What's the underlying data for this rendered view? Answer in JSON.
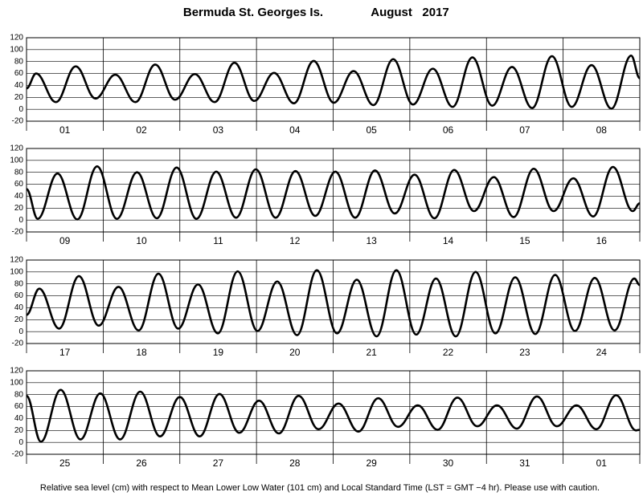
{
  "title": "Bermuda St. Georges Is.",
  "title_date": "August   2017",
  "note": "Relative sea level (cm) with respect to Mean Lower Low Water (101 cm) and Local Standard Time (LST = GMT −4 hr). Please use with caution.",
  "chart_data": [
    {
      "type": "line",
      "color": "#000000",
      "grid": true,
      "xlim": [
        0,
        192
      ],
      "xticks": [
        0,
        24,
        48,
        72,
        96,
        120,
        144,
        168,
        192
      ],
      "ylim": [
        -20,
        120
      ],
      "yticks": [
        -20,
        0,
        20,
        40,
        60,
        80,
        100,
        120
      ],
      "categories": [
        "01",
        "02",
        "03",
        "04",
        "05",
        "06",
        "07",
        "08"
      ],
      "x": [
        0,
        3,
        9.2,
        15.4,
        21.6,
        27.8,
        34.1,
        40.3,
        46.5,
        52.7,
        58.9,
        65.1,
        71.3,
        77.5,
        83.7,
        89.9,
        96.2,
        102.4,
        108.6,
        114.8,
        121,
        127.2,
        133.4,
        139.6,
        145.8,
        152,
        158.3,
        164.5,
        170.7,
        176.9,
        183.1,
        189.3,
        192
      ],
      "values": [
        35,
        60,
        12,
        72,
        18,
        58,
        12,
        75,
        16,
        59,
        12,
        78,
        14,
        61,
        10,
        81,
        11,
        64,
        7,
        84,
        8,
        68,
        4,
        87,
        6,
        71,
        2,
        89,
        4,
        74,
        1,
        90,
        52
      ]
    },
    {
      "type": "line",
      "color": "#000000",
      "grid": true,
      "xlim": [
        0,
        192
      ],
      "xticks": [
        0,
        24,
        48,
        72,
        96,
        120,
        144,
        168,
        192
      ],
      "ylim": [
        -20,
        120
      ],
      "yticks": [
        -20,
        0,
        20,
        40,
        60,
        80,
        100,
        120
      ],
      "categories": [
        "09",
        "10",
        "11",
        "12",
        "13",
        "14",
        "15",
        "16"
      ],
      "x": [
        0,
        3.5,
        9.7,
        15.9,
        22.1,
        28.3,
        34.6,
        40.8,
        47,
        53.2,
        59.4,
        65.6,
        71.8,
        78,
        84.2,
        90.4,
        96.7,
        102.9,
        109.1,
        115.3,
        121.5,
        127.7,
        133.9,
        140.1,
        146.3,
        152.5,
        158.8,
        165,
        171.2,
        177.4,
        183.6,
        189.8,
        192
      ],
      "values": [
        52,
        2,
        78,
        1,
        90,
        2,
        80,
        3,
        88,
        2,
        81,
        4,
        85,
        4,
        82,
        7,
        81,
        4,
        83,
        11,
        76,
        3,
        84,
        15,
        72,
        5,
        86,
        15,
        70,
        6,
        89,
        15,
        28
      ]
    },
    {
      "type": "line",
      "color": "#000000",
      "grid": true,
      "xlim": [
        0,
        192
      ],
      "xticks": [
        0,
        24,
        48,
        72,
        96,
        120,
        144,
        168,
        192
      ],
      "ylim": [
        -20,
        120
      ],
      "yticks": [
        -20,
        0,
        20,
        40,
        60,
        80,
        100,
        120
      ],
      "categories": [
        "17",
        "18",
        "19",
        "20",
        "21",
        "22",
        "23",
        "24"
      ],
      "x": [
        0,
        4,
        10.2,
        16.4,
        22.6,
        28.8,
        35.1,
        41.3,
        47.5,
        53.7,
        59.9,
        66.1,
        72.3,
        78.5,
        84.7,
        90.9,
        97.2,
        103.4,
        109.6,
        115.8,
        122,
        128.2,
        134.4,
        140.6,
        146.8,
        153,
        159.3,
        165.5,
        171.7,
        177.9,
        184.1,
        190.3,
        192
      ],
      "values": [
        28,
        72,
        5,
        93,
        10,
        75,
        2,
        97,
        5,
        79,
        -3,
        101,
        1,
        84,
        -6,
        103,
        -3,
        87,
        -8,
        103,
        -5,
        89,
        -8,
        100,
        -3,
        91,
        -4,
        95,
        1,
        90,
        2,
        89,
        78
      ]
    },
    {
      "type": "line",
      "color": "#000000",
      "grid": true,
      "xlim": [
        0,
        192
      ],
      "xticks": [
        0,
        24,
        48,
        72,
        96,
        120,
        144,
        168,
        192
      ],
      "ylim": [
        -20,
        120
      ],
      "yticks": [
        -20,
        0,
        20,
        40,
        60,
        80,
        100,
        120
      ],
      "categories": [
        "25",
        "26",
        "27",
        "28",
        "29",
        "30",
        "31",
        "01"
      ],
      "x": [
        0,
        4.5,
        10.7,
        16.9,
        23.1,
        29.3,
        35.6,
        41.8,
        48,
        54.2,
        60.4,
        66.6,
        72.8,
        79,
        85.2,
        91.4,
        97.7,
        103.9,
        110.1,
        116.3,
        122.5,
        128.7,
        134.9,
        141.1,
        147.3,
        153.5,
        159.8,
        166,
        172.2,
        178.4,
        184.6,
        190.8,
        192
      ],
      "values": [
        78,
        1,
        88,
        5,
        82,
        5,
        85,
        10,
        76,
        10,
        81,
        16,
        70,
        15,
        78,
        22,
        65,
        18,
        74,
        26,
        62,
        21,
        75,
        27,
        62,
        23,
        77,
        27,
        62,
        22,
        79,
        20,
        21
      ]
    }
  ]
}
